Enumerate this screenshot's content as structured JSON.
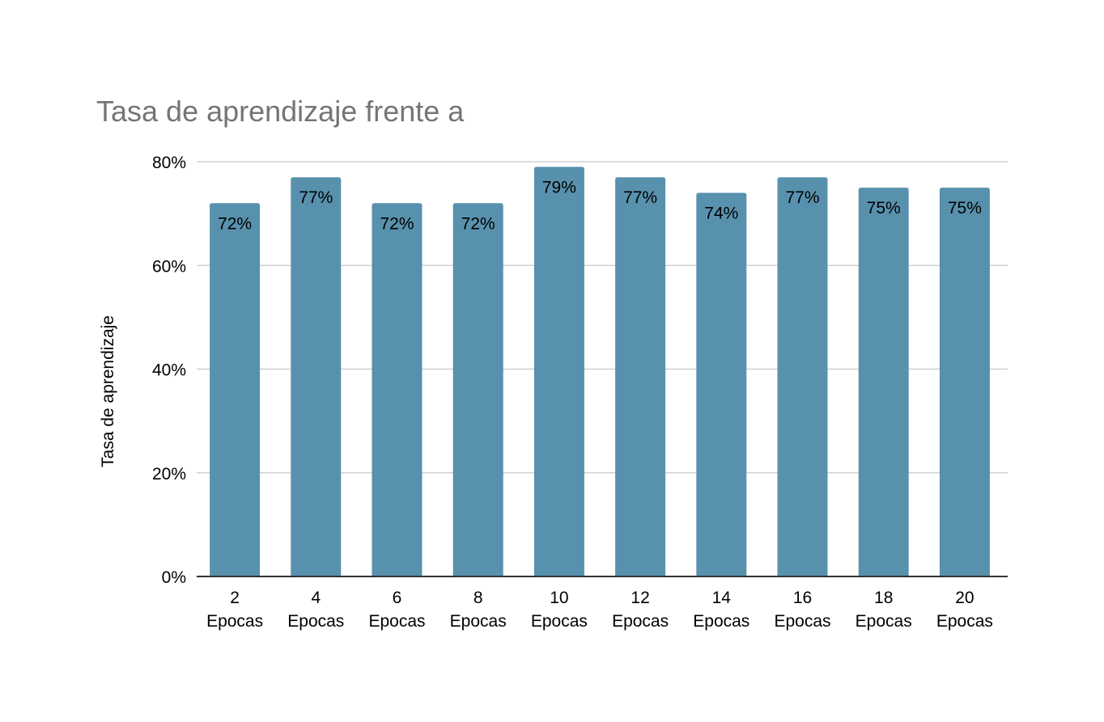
{
  "chart_data": {
    "type": "bar",
    "title": "Tasa de aprendizaje frente a",
    "xlabel": "",
    "ylabel": "Tasa de aprendizaje",
    "categories": [
      "2 Epocas",
      "4 Epocas",
      "6 Epocas",
      "8 Epocas",
      "10 Epocas",
      "12 Epocas",
      "14 Epocas",
      "16 Epocas",
      "18 Epocas",
      "20 Epocas"
    ],
    "values": [
      72,
      77,
      72,
      72,
      79,
      77,
      74,
      77,
      75,
      75
    ],
    "value_labels": [
      "72%",
      "77%",
      "72%",
      "72%",
      "79%",
      "77%",
      "74%",
      "77%",
      "75%",
      "75%"
    ],
    "ylim": [
      0,
      80
    ],
    "yticks": [
      0,
      20,
      40,
      60,
      80
    ],
    "ytick_labels": [
      "0%",
      "20%",
      "40%",
      "60%",
      "80%"
    ],
    "grid": true,
    "legend": "none",
    "bar_color": "#5891ad"
  }
}
